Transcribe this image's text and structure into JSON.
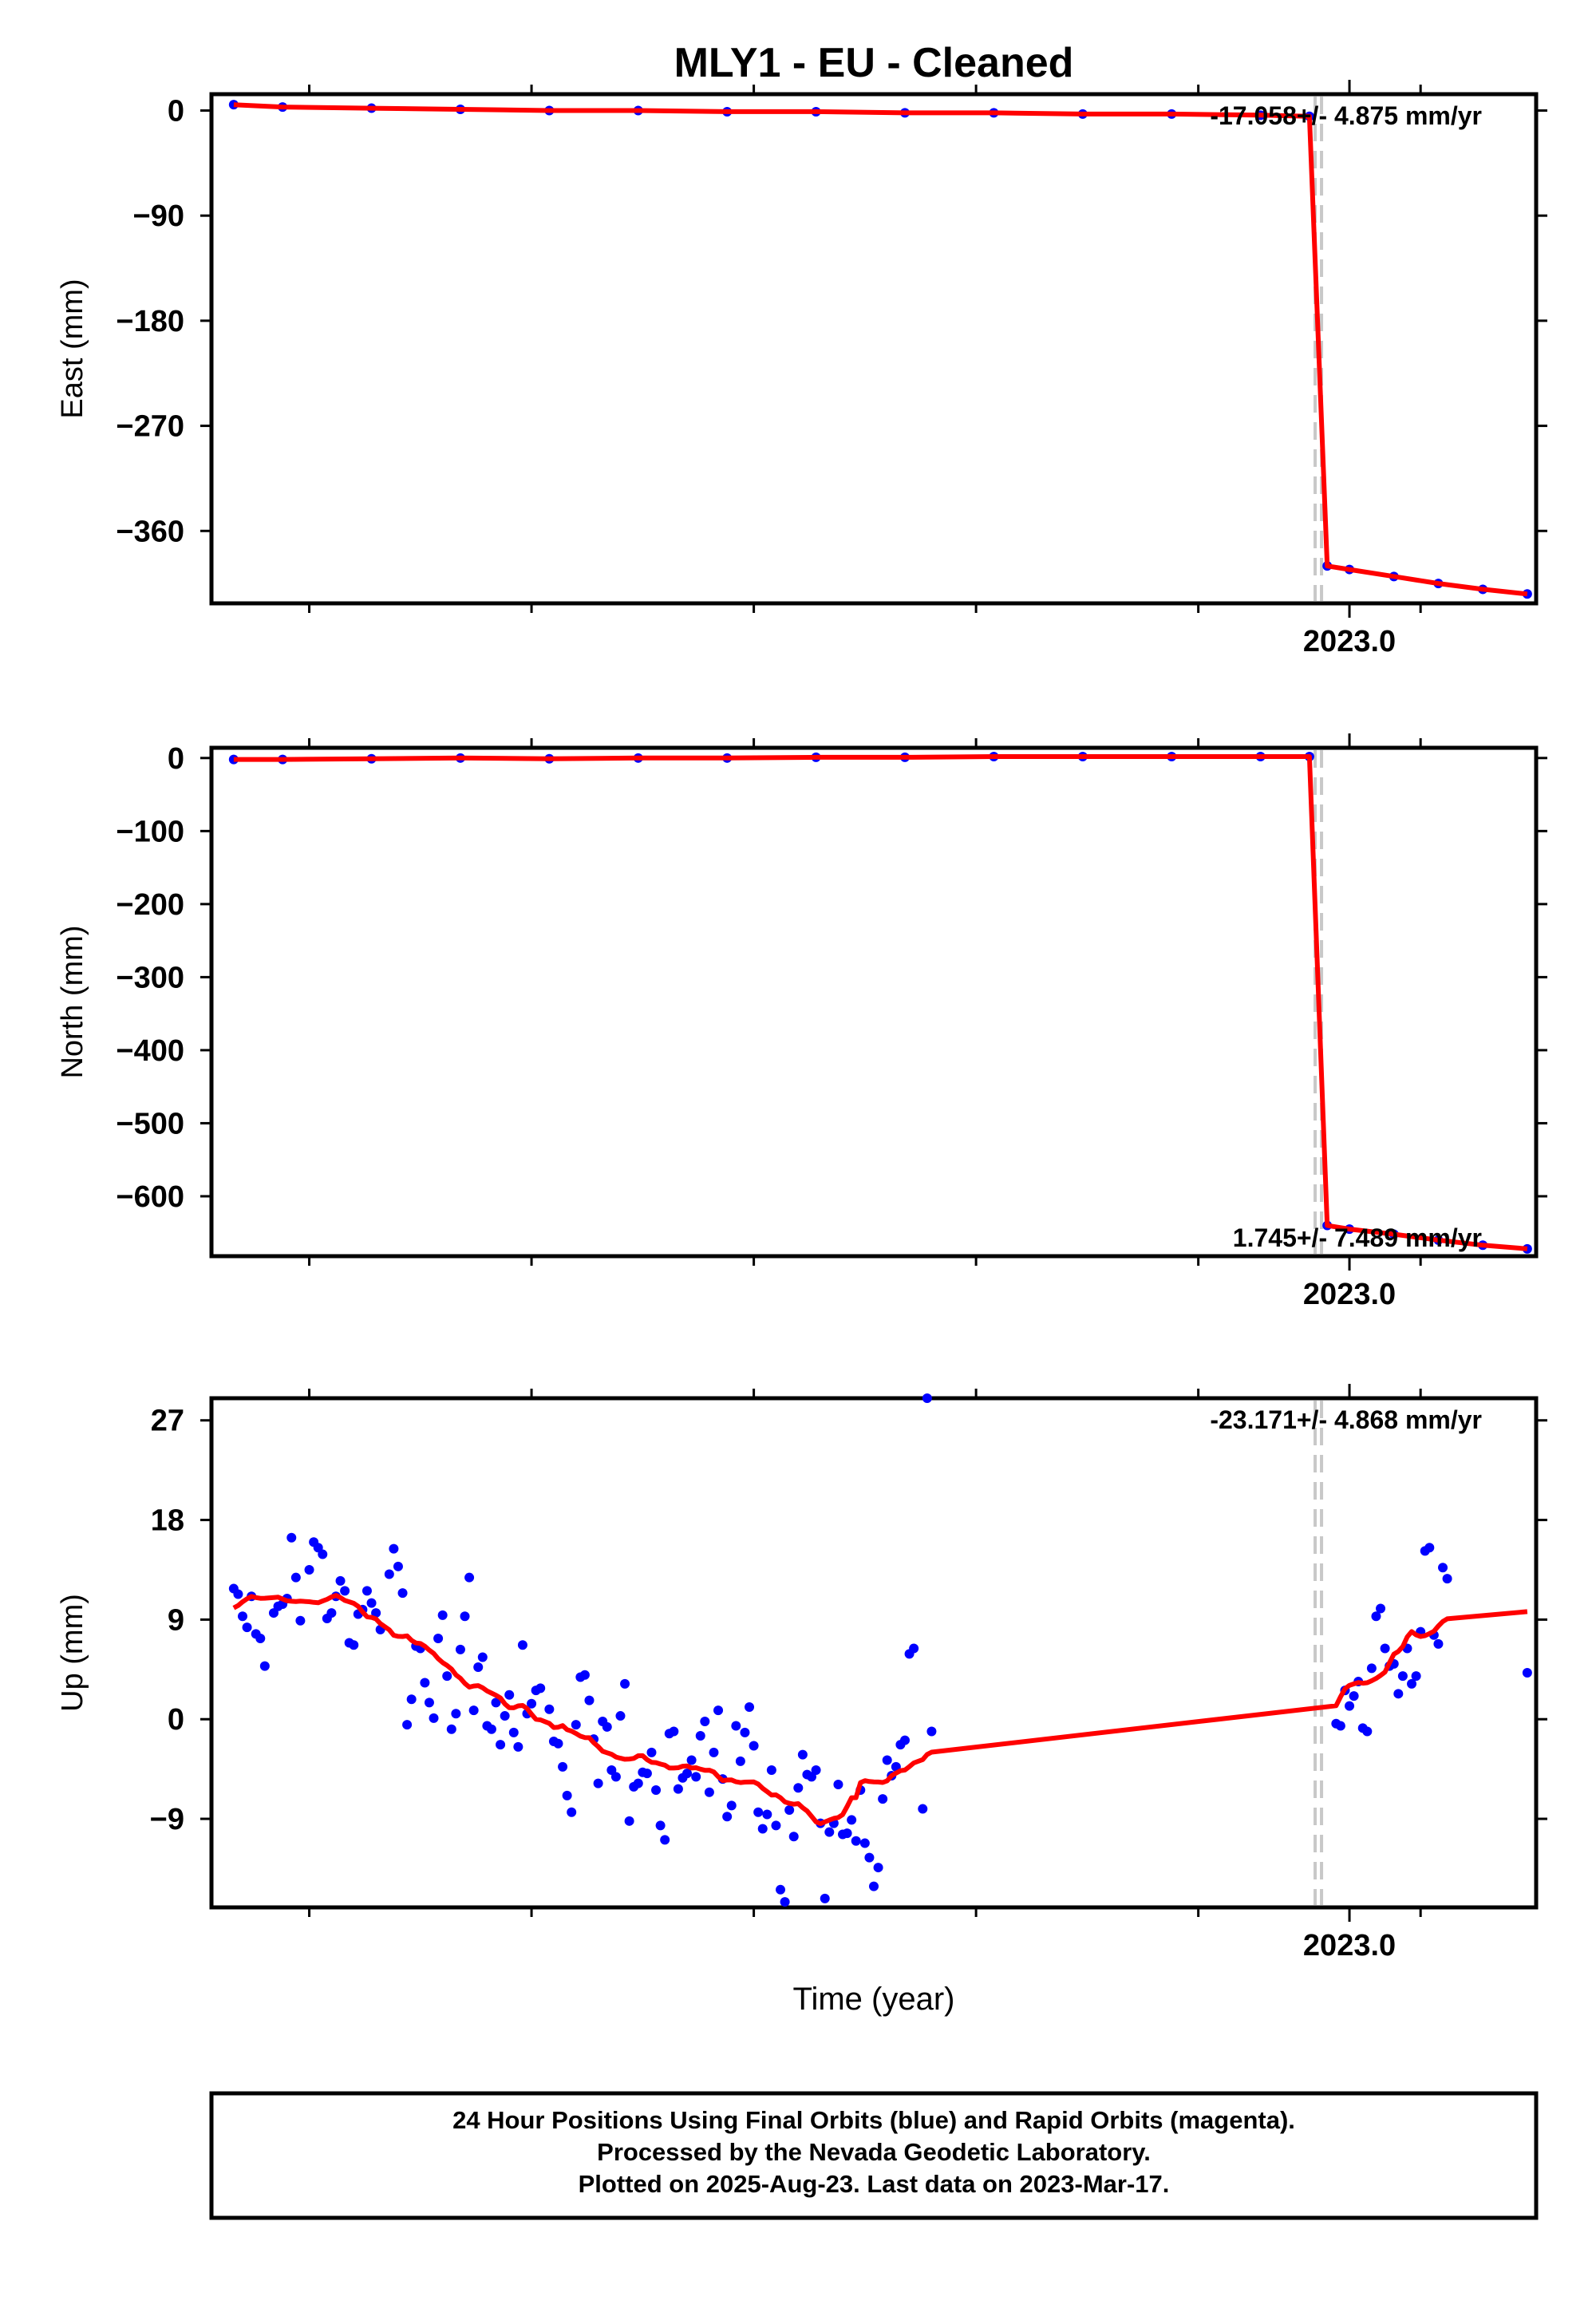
{
  "title": "MLY1  - EU - Cleaned",
  "xlabel": "Time (year)",
  "colors": {
    "points": "#0000ff",
    "model": "#ff0000",
    "offset_line": "#c8c8c8",
    "frame": "#000000"
  },
  "footer": {
    "line1": "24 Hour Positions Using Final Orbits (blue) and Rapid Orbits (magenta).",
    "line2": "Processed by the Nevada Geodetic Laboratory.",
    "line3": "Plotted on 2025-Aug-23. Last data on 2023-Mar-17."
  },
  "chart_data": [
    {
      "type": "scatter",
      "panel": "east",
      "ylabel": "East (mm)",
      "rate_label": "-17.058+/- 4.875 mm/yr",
      "xlim": [
        2021.72,
        2023.21
      ],
      "ylim": [
        -422,
        14
      ],
      "yticks": [
        0,
        -90,
        -180,
        -270,
        -360
      ],
      "xticks_major": [
        2023.0
      ],
      "xticks_minor": [
        2021.83,
        2022.08,
        2022.33,
        2022.58,
        2022.83,
        2023.08
      ],
      "offset_epoch": 2022.965,
      "series": [
        {
          "values": [
            [
              2021.745,
              5
            ],
            [
              2021.8,
              3
            ],
            [
              2021.9,
              2
            ],
            [
              2022.0,
              1
            ],
            [
              2022.1,
              0
            ],
            [
              2022.2,
              0
            ],
            [
              2022.3,
              -1
            ],
            [
              2022.4,
              -1
            ],
            [
              2022.5,
              -2
            ],
            [
              2022.6,
              -2
            ],
            [
              2022.7,
              -3
            ],
            [
              2022.8,
              -3
            ],
            [
              2022.9,
              -4
            ],
            [
              2022.955,
              -5
            ],
            [
              2022.975,
              -390
            ],
            [
              2023.0,
              -393
            ],
            [
              2023.05,
              -399
            ],
            [
              2023.1,
              -405
            ],
            [
              2023.15,
              -410
            ],
            [
              2023.2,
              -414
            ]
          ]
        }
      ]
    },
    {
      "type": "scatter",
      "panel": "north",
      "ylabel": "North (mm)",
      "rate_label": "1.745+/- 7.489 mm/yr",
      "xlim": [
        2021.72,
        2023.21
      ],
      "ylim": [
        -682,
        14
      ],
      "yticks": [
        0,
        -100,
        -200,
        -300,
        -400,
        -500,
        -600
      ],
      "xticks_major": [
        2023.0
      ],
      "xticks_minor": [
        2021.83,
        2022.08,
        2022.33,
        2022.58,
        2022.83,
        2023.08
      ],
      "offset_epoch": 2022.965,
      "series": [
        {
          "values": [
            [
              2021.745,
              -2
            ],
            [
              2021.8,
              -2
            ],
            [
              2021.9,
              -1
            ],
            [
              2022.0,
              0
            ],
            [
              2022.1,
              -1
            ],
            [
              2022.2,
              0
            ],
            [
              2022.3,
              0
            ],
            [
              2022.4,
              1
            ],
            [
              2022.5,
              1
            ],
            [
              2022.6,
              2
            ],
            [
              2022.7,
              2
            ],
            [
              2022.8,
              2
            ],
            [
              2022.9,
              2
            ],
            [
              2022.955,
              2
            ],
            [
              2022.975,
              -640
            ],
            [
              2023.0,
              -645
            ],
            [
              2023.05,
              -652
            ],
            [
              2023.1,
              -660
            ],
            [
              2023.15,
              -667
            ],
            [
              2023.2,
              -672
            ]
          ]
        }
      ]
    },
    {
      "type": "scatter",
      "panel": "up",
      "ylabel": "Up (mm)",
      "rate_label": "-23.171+/- 4.868 mm/yr",
      "xlim": [
        2021.72,
        2023.21
      ],
      "ylim": [
        -17,
        29
      ],
      "yticks": [
        27,
        18,
        9,
        0,
        -9
      ],
      "xticks_major": [
        2023.0
      ],
      "xticks_minor": [
        2021.83,
        2022.08,
        2022.33,
        2022.58,
        2022.83,
        2023.08
      ],
      "offset_epoch": 2022.965,
      "series": [
        {
          "values": [
            [
              2021.745,
              11.8
            ],
            [
              2021.75,
              11.3
            ],
            [
              2021.755,
              9.3
            ],
            [
              2021.76,
              8.3
            ],
            [
              2021.765,
              11.1
            ],
            [
              2021.77,
              7.7
            ],
            [
              2021.775,
              7.3
            ],
            [
              2021.78,
              4.8
            ],
            [
              2021.79,
              9.6
            ],
            [
              2021.795,
              10.2
            ],
            [
              2021.8,
              10.4
            ],
            [
              2021.805,
              10.9
            ],
            [
              2021.81,
              16.4
            ],
            [
              2021.815,
              12.8
            ],
            [
              2021.82,
              8.9
            ],
            [
              2021.83,
              13.5
            ],
            [
              2021.835,
              16.0
            ],
            [
              2021.84,
              15.5
            ],
            [
              2021.845,
              14.9
            ],
            [
              2021.85,
              9.1
            ],
            [
              2021.855,
              9.6
            ],
            [
              2021.86,
              11.1
            ],
            [
              2021.865,
              12.5
            ],
            [
              2021.87,
              11.6
            ],
            [
              2021.875,
              6.9
            ],
            [
              2021.88,
              6.7
            ],
            [
              2021.885,
              9.5
            ],
            [
              2021.89,
              9.9
            ],
            [
              2021.895,
              11.6
            ],
            [
              2021.9,
              10.5
            ],
            [
              2021.905,
              9.6
            ],
            [
              2021.91,
              8.1
            ],
            [
              2021.92,
              13.1
            ],
            [
              2021.925,
              15.4
            ],
            [
              2021.93,
              13.8
            ],
            [
              2021.935,
              11.4
            ],
            [
              2021.94,
              -0.5
            ],
            [
              2021.945,
              1.8
            ],
            [
              2021.95,
              6.6
            ],
            [
              2021.955,
              6.4
            ],
            [
              2021.96,
              3.3
            ],
            [
              2021.965,
              1.5
            ],
            [
              2021.97,
              0.1
            ],
            [
              2021.975,
              7.3
            ],
            [
              2021.98,
              9.4
            ],
            [
              2021.985,
              3.9
            ],
            [
              2021.99,
              -0.9
            ],
            [
              2021.995,
              0.5
            ],
            [
              2022.0,
              6.3
            ],
            [
              2022.005,
              9.3
            ],
            [
              2022.01,
              12.8
            ],
            [
              2022.015,
              0.8
            ],
            [
              2022.02,
              4.7
            ],
            [
              2022.025,
              5.6
            ],
            [
              2022.03,
              -0.6
            ],
            [
              2022.035,
              -0.9
            ],
            [
              2022.04,
              1.5
            ],
            [
              2022.045,
              -2.3
            ],
            [
              2022.05,
              0.3
            ],
            [
              2022.055,
              2.2
            ],
            [
              2022.06,
              -1.2
            ],
            [
              2022.065,
              -2.5
            ],
            [
              2022.07,
              6.7
            ],
            [
              2022.075,
              0.5
            ],
            [
              2022.08,
              1.4
            ],
            [
              2022.085,
              2.6
            ],
            [
              2022.09,
              2.8
            ],
            [
              2022.1,
              0.9
            ],
            [
              2022.105,
              -2.0
            ],
            [
              2022.11,
              -2.2
            ],
            [
              2022.115,
              -4.3
            ],
            [
              2022.12,
              -6.9
            ],
            [
              2022.125,
              -8.4
            ],
            [
              2022.13,
              -0.5
            ],
            [
              2022.135,
              3.8
            ],
            [
              2022.14,
              4.0
            ],
            [
              2022.145,
              1.7
            ],
            [
              2022.15,
              -1.8
            ],
            [
              2022.155,
              -5.8
            ],
            [
              2022.16,
              -0.2
            ],
            [
              2022.165,
              -0.7
            ],
            [
              2022.17,
              -4.6
            ],
            [
              2022.175,
              -5.2
            ],
            [
              2022.18,
              0.3
            ],
            [
              2022.185,
              3.2
            ],
            [
              2022.19,
              -9.2
            ],
            [
              2022.195,
              -6.1
            ],
            [
              2022.2,
              -5.8
            ],
            [
              2022.205,
              -4.8
            ],
            [
              2022.21,
              -4.9
            ],
            [
              2022.215,
              -3.0
            ],
            [
              2022.22,
              -6.4
            ],
            [
              2022.225,
              -9.6
            ],
            [
              2022.23,
              -10.9
            ],
            [
              2022.235,
              -1.3
            ],
            [
              2022.24,
              -1.1
            ],
            [
              2022.245,
              -6.3
            ],
            [
              2022.25,
              -5.3
            ],
            [
              2022.255,
              -4.9
            ],
            [
              2022.26,
              -3.7
            ],
            [
              2022.265,
              -5.2
            ],
            [
              2022.27,
              -1.5
            ],
            [
              2022.275,
              -0.2
            ],
            [
              2022.28,
              -6.6
            ],
            [
              2022.285,
              -3.0
            ],
            [
              2022.29,
              0.8
            ],
            [
              2022.295,
              -5.4
            ],
            [
              2022.3,
              -8.8
            ],
            [
              2022.305,
              -7.8
            ],
            [
              2022.31,
              -0.6
            ],
            [
              2022.315,
              -3.8
            ],
            [
              2022.32,
              -1.2
            ],
            [
              2022.325,
              1.1
            ],
            [
              2022.33,
              -2.4
            ],
            [
              2022.335,
              -8.4
            ],
            [
              2022.34,
              -9.9
            ],
            [
              2022.345,
              -8.6
            ],
            [
              2022.35,
              -4.6
            ],
            [
              2022.355,
              -9.6
            ],
            [
              2022.36,
              -15.4
            ],
            [
              2022.365,
              -16.5
            ],
            [
              2022.37,
              -8.2
            ],
            [
              2022.375,
              -10.6
            ],
            [
              2022.38,
              -6.2
            ],
            [
              2022.385,
              -3.2
            ],
            [
              2022.39,
              -5.0
            ],
            [
              2022.395,
              -5.2
            ],
            [
              2022.4,
              -4.6
            ],
            [
              2022.405,
              -9.4
            ],
            [
              2022.41,
              -16.2
            ],
            [
              2022.415,
              -10.2
            ],
            [
              2022.42,
              -9.4
            ],
            [
              2022.425,
              -5.9
            ],
            [
              2022.43,
              -10.4
            ],
            [
              2022.435,
              -10.3
            ],
            [
              2022.44,
              -9.1
            ],
            [
              2022.445,
              -11.0
            ],
            [
              2022.45,
              -6.4
            ],
            [
              2022.455,
              -11.2
            ],
            [
              2022.46,
              -12.5
            ],
            [
              2022.465,
              -15.1
            ],
            [
              2022.47,
              -13.4
            ],
            [
              2022.475,
              -7.2
            ],
            [
              2022.48,
              -3.7
            ],
            [
              2022.485,
              -5.1
            ],
            [
              2022.49,
              -4.3
            ],
            [
              2022.495,
              -2.3
            ],
            [
              2022.5,
              -1.9
            ],
            [
              2022.505,
              5.9
            ],
            [
              2022.51,
              6.4
            ],
            [
              2022.52,
              -8.1
            ],
            [
              2022.525,
              29.0
            ],
            [
              2022.53,
              -1.1
            ],
            [
              2022.985,
              -0.4
            ],
            [
              2022.99,
              -0.6
            ],
            [
              2022.995,
              2.6
            ],
            [
              2023.0,
              1.2
            ],
            [
              2023.005,
              2.1
            ],
            [
              2023.01,
              3.4
            ],
            [
              2023.015,
              -0.8
            ],
            [
              2023.02,
              -1.1
            ],
            [
              2023.025,
              4.6
            ],
            [
              2023.03,
              9.3
            ],
            [
              2023.035,
              10.0
            ],
            [
              2023.04,
              6.4
            ],
            [
              2023.045,
              4.8
            ],
            [
              2023.05,
              5.0
            ],
            [
              2023.055,
              2.3
            ],
            [
              2023.06,
              3.9
            ],
            [
              2023.065,
              6.4
            ],
            [
              2023.07,
              3.2
            ],
            [
              2023.075,
              3.9
            ],
            [
              2023.08,
              7.9
            ],
            [
              2023.085,
              15.2
            ],
            [
              2023.09,
              15.5
            ],
            [
              2023.095,
              7.6
            ],
            [
              2023.1,
              6.8
            ],
            [
              2023.105,
              13.7
            ],
            [
              2023.11,
              12.7
            ],
            [
              2023.2,
              4.2
            ]
          ]
        }
      ]
    }
  ]
}
